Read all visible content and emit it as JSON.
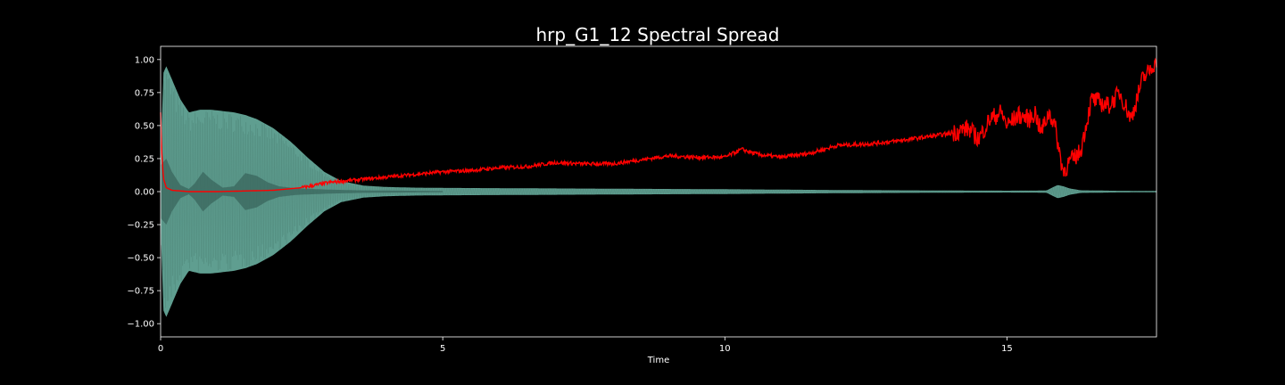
{
  "chart_data": {
    "type": "line",
    "title": "hrp_G1_12 Spectral Spread",
    "xlabel": "Time",
    "ylabel": "",
    "xlim": [
      0,
      17.65
    ],
    "ylim": [
      -1.1,
      1.1
    ],
    "x_ticks": [
      0,
      5,
      10,
      15
    ],
    "x_tick_labels": [
      "0",
      "5",
      "10",
      "15"
    ],
    "y_ticks": [
      -1.0,
      -0.75,
      -0.5,
      -0.25,
      0.0,
      0.25,
      0.5,
      0.75,
      1.0
    ],
    "y_tick_labels": [
      "−1.00",
      "−0.75",
      "−0.50",
      "−0.25",
      "0.00",
      "0.25",
      "0.50",
      "0.75",
      "1.00"
    ],
    "grid": false,
    "colors": {
      "background": "#000000",
      "axes": "#ffffff",
      "waveform": "#5f9e90",
      "waveform_inner": "#3d6b61",
      "spread": "#ff0000"
    },
    "series": [
      {
        "kind": "waveform-envelope",
        "x": [
          0,
          0.05,
          0.1,
          0.2,
          0.35,
          0.5,
          0.7,
          0.9,
          1.1,
          1.3,
          1.5,
          1.7,
          2.0,
          2.3,
          2.6,
          2.9,
          3.2,
          3.6,
          4.0,
          4.5,
          5.0,
          6.0,
          7.0,
          8.0,
          9.0,
          10.0,
          11.0,
          12.0,
          13.0,
          14.0,
          15.0,
          15.7,
          15.8,
          15.9,
          16.0,
          16.1,
          16.3,
          17.0,
          17.65
        ],
        "values": [
          0.25,
          0.9,
          0.95,
          0.85,
          0.7,
          0.6,
          0.62,
          0.62,
          0.61,
          0.6,
          0.58,
          0.55,
          0.48,
          0.38,
          0.26,
          0.15,
          0.08,
          0.045,
          0.035,
          0.03,
          0.028,
          0.026,
          0.024,
          0.022,
          0.02,
          0.018,
          0.015,
          0.012,
          0.01,
          0.008,
          0.007,
          0.008,
          0.03,
          0.05,
          0.04,
          0.025,
          0.01,
          0.006,
          0.005
        ]
      },
      {
        "kind": "waveform-inner",
        "x": [
          0,
          0.1,
          0.2,
          0.35,
          0.5,
          0.6,
          0.75,
          0.9,
          1.1,
          1.3,
          1.5,
          1.7,
          1.9,
          2.1,
          2.4,
          2.7,
          3.0,
          3.5,
          4.0,
          5.0
        ],
        "values": [
          0.2,
          0.25,
          0.15,
          0.05,
          0.02,
          0.06,
          0.15,
          0.09,
          0.03,
          0.04,
          0.14,
          0.12,
          0.07,
          0.04,
          0.025,
          0.02,
          0.015,
          0.01,
          0.008,
          0.005
        ]
      },
      {
        "kind": "spectral-spread",
        "x": [
          0,
          0.02,
          0.05,
          0.1,
          0.2,
          0.5,
          1.0,
          2.0,
          2.5,
          3.0,
          3.5,
          4.0,
          4.5,
          5.0,
          5.5,
          6.0,
          6.5,
          7.0,
          7.5,
          8.0,
          8.5,
          9.0,
          9.5,
          10.0,
          10.3,
          10.6,
          11.0,
          11.5,
          12.0,
          12.5,
          13.0,
          13.5,
          14.0,
          14.3,
          14.5,
          14.7,
          14.9,
          15.0,
          15.2,
          15.4,
          15.5,
          15.6,
          15.75,
          15.85,
          15.95,
          16.0,
          16.1,
          16.3,
          16.5,
          16.8,
          17.0,
          17.2,
          17.4,
          17.5,
          17.65
        ],
        "values": [
          0.6,
          0.3,
          0.1,
          0.03,
          0.01,
          0.0,
          0.0,
          0.01,
          0.03,
          0.07,
          0.09,
          0.11,
          0.13,
          0.15,
          0.16,
          0.18,
          0.19,
          0.22,
          0.21,
          0.21,
          0.24,
          0.27,
          0.26,
          0.26,
          0.32,
          0.28,
          0.26,
          0.29,
          0.35,
          0.36,
          0.38,
          0.41,
          0.44,
          0.48,
          0.4,
          0.55,
          0.6,
          0.5,
          0.58,
          0.55,
          0.6,
          0.45,
          0.6,
          0.5,
          0.25,
          0.15,
          0.22,
          0.3,
          0.7,
          0.65,
          0.75,
          0.55,
          0.85,
          0.9,
          1.0
        ]
      }
    ]
  }
}
